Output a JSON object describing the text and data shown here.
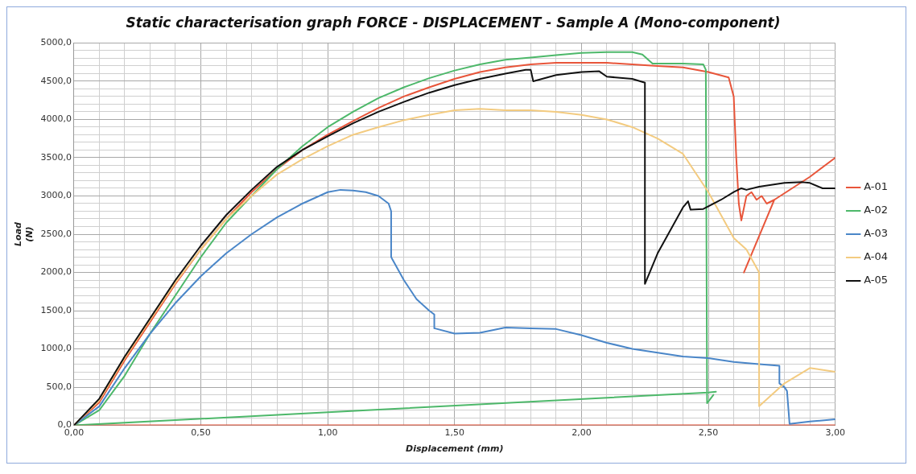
{
  "chart_data": {
    "type": "line",
    "title": "Static characterisation graph FORCE - DISPLACEMENT - Sample A (Mono-component)",
    "xlabel": "Displacement (mm)",
    "ylabel": "Load\n(N)",
    "xlim": [
      0,
      3
    ],
    "ylim": [
      0,
      5000
    ],
    "xticks": [
      {
        "value": 0,
        "label": "0,00"
      },
      {
        "value": 0.1,
        "label": null
      },
      {
        "value": 0.2,
        "label": null
      },
      {
        "value": 0.3,
        "label": null
      },
      {
        "value": 0.4,
        "label": null
      },
      {
        "value": 0.5,
        "label": "0,50"
      },
      {
        "value": 0.6,
        "label": null
      },
      {
        "value": 0.7,
        "label": null
      },
      {
        "value": 0.8,
        "label": null
      },
      {
        "value": 0.9,
        "label": null
      },
      {
        "value": 1,
        "label": "1,00"
      },
      {
        "value": 1.1,
        "label": null
      },
      {
        "value": 1.2,
        "label": null
      },
      {
        "value": 1.3,
        "label": null
      },
      {
        "value": 1.4,
        "label": null
      },
      {
        "value": 1.5,
        "label": "1,50"
      },
      {
        "value": 1.6,
        "label": null
      },
      {
        "value": 1.7,
        "label": null
      },
      {
        "value": 1.8,
        "label": null
      },
      {
        "value": 1.9,
        "label": null
      },
      {
        "value": 2,
        "label": "2,00"
      },
      {
        "value": 2.1,
        "label": null
      },
      {
        "value": 2.2,
        "label": null
      },
      {
        "value": 2.3,
        "label": null
      },
      {
        "value": 2.4,
        "label": null
      },
      {
        "value": 2.5,
        "label": "2,50"
      },
      {
        "value": 2.6,
        "label": null
      },
      {
        "value": 2.7,
        "label": null
      },
      {
        "value": 2.8,
        "label": null
      },
      {
        "value": 2.9,
        "label": null
      },
      {
        "value": 3,
        "label": "3,00"
      }
    ],
    "yticks": [
      {
        "value": 0,
        "label": "0,0"
      },
      {
        "value": 100,
        "label": null
      },
      {
        "value": 200,
        "label": null
      },
      {
        "value": 300,
        "label": null
      },
      {
        "value": 400,
        "label": null
      },
      {
        "value": 500,
        "label": "500,0"
      },
      {
        "value": 600,
        "label": null
      },
      {
        "value": 700,
        "label": null
      },
      {
        "value": 800,
        "label": null
      },
      {
        "value": 900,
        "label": null
      },
      {
        "value": 1000,
        "label": "1000,0"
      },
      {
        "value": 1100,
        "label": null
      },
      {
        "value": 1200,
        "label": null
      },
      {
        "value": 1300,
        "label": null
      },
      {
        "value": 1400,
        "label": null
      },
      {
        "value": 1500,
        "label": "1500,0"
      },
      {
        "value": 1600,
        "label": null
      },
      {
        "value": 1700,
        "label": null
      },
      {
        "value": 1800,
        "label": null
      },
      {
        "value": 1900,
        "label": null
      },
      {
        "value": 2000,
        "label": "2000,0"
      },
      {
        "value": 2100,
        "label": null
      },
      {
        "value": 2200,
        "label": null
      },
      {
        "value": 2300,
        "label": null
      },
      {
        "value": 2400,
        "label": null
      },
      {
        "value": 2500,
        "label": "2500,0"
      },
      {
        "value": 2600,
        "label": null
      },
      {
        "value": 2700,
        "label": null
      },
      {
        "value": 2800,
        "label": null
      },
      {
        "value": 2900,
        "label": null
      },
      {
        "value": 3000,
        "label": "3000,0"
      },
      {
        "value": 3100,
        "label": null
      },
      {
        "value": 3200,
        "label": null
      },
      {
        "value": 3300,
        "label": null
      },
      {
        "value": 3400,
        "label": null
      },
      {
        "value": 3500,
        "label": "3500,0"
      },
      {
        "value": 3600,
        "label": null
      },
      {
        "value": 3700,
        "label": null
      },
      {
        "value": 3800,
        "label": null
      },
      {
        "value": 3900,
        "label": null
      },
      {
        "value": 4000,
        "label": "4000,0"
      },
      {
        "value": 4100,
        "label": null
      },
      {
        "value": 4200,
        "label": null
      },
      {
        "value": 4300,
        "label": null
      },
      {
        "value": 4400,
        "label": null
      },
      {
        "value": 4500,
        "label": "4500,0"
      },
      {
        "value": 4600,
        "label": null
      },
      {
        "value": 4700,
        "label": null
      },
      {
        "value": 4800,
        "label": null
      },
      {
        "value": 4900,
        "label": null
      },
      {
        "value": 5000,
        "label": "5000,0"
      }
    ],
    "grid": true,
    "legend": "right",
    "marker": "none",
    "line_style": "solid",
    "series": [
      {
        "name": "A-01",
        "color": "#e8553a",
        "x": [
          3.0,
          0,
          0.1,
          0.2,
          0.3,
          0.4,
          0.5,
          0.6,
          0.7,
          0.8,
          0.9,
          1.0,
          1.1,
          1.2,
          1.3,
          1.4,
          1.5,
          1.6,
          1.7,
          1.8,
          1.9,
          2.0,
          2.1,
          2.2,
          2.3,
          2.4,
          2.5,
          2.58,
          2.6,
          2.61,
          2.62,
          2.63,
          2.65,
          2.67,
          2.69,
          2.71,
          2.73,
          2.76,
          2.64,
          2.76,
          2.9,
          3.0
        ],
        "values": [
          0,
          0,
          300,
          850,
          1350,
          1850,
          2300,
          2700,
          3050,
          3350,
          3600,
          3800,
          3980,
          4150,
          4300,
          4420,
          4530,
          4620,
          4680,
          4720,
          4740,
          4740,
          4740,
          4720,
          4700,
          4680,
          4620,
          4550,
          4300,
          3500,
          2900,
          2680,
          3000,
          3050,
          2950,
          3000,
          2900,
          2950,
          2000,
          2950,
          3250,
          3500
        ]
      },
      {
        "name": "A-02",
        "color": "#4db86a",
        "x": [
          2.53,
          2.5,
          0,
          0.1,
          0.2,
          0.3,
          0.4,
          0.5,
          0.6,
          0.7,
          0.8,
          0.9,
          1.0,
          1.1,
          1.2,
          1.3,
          1.4,
          1.5,
          1.6,
          1.7,
          1.8,
          1.9,
          2.0,
          2.1,
          2.2,
          2.24,
          2.28,
          2.4,
          2.48,
          2.49,
          2.495,
          2.52
        ],
        "values": [
          440,
          430,
          0,
          200,
          650,
          1200,
          1700,
          2200,
          2650,
          3000,
          3350,
          3650,
          3900,
          4100,
          4280,
          4420,
          4540,
          4640,
          4720,
          4780,
          4810,
          4840,
          4870,
          4880,
          4880,
          4850,
          4730,
          4730,
          4720,
          4650,
          290,
          400
        ]
      },
      {
        "name": "A-03",
        "color": "#4a86c8",
        "x": [
          0,
          0.1,
          0.2,
          0.3,
          0.4,
          0.5,
          0.6,
          0.7,
          0.8,
          0.9,
          1.0,
          1.05,
          1.1,
          1.15,
          1.2,
          1.24,
          1.25,
          1.25,
          1.3,
          1.35,
          1.4,
          1.42,
          1.42,
          1.5,
          1.6,
          1.7,
          1.8,
          1.9,
          2.0,
          2.1,
          2.2,
          2.3,
          2.4,
          2.5,
          2.6,
          2.7,
          2.78,
          2.78,
          2.8,
          2.81,
          2.82,
          2.9,
          3.0
        ],
        "values": [
          0,
          250,
          750,
          1200,
          1600,
          1950,
          2250,
          2500,
          2720,
          2900,
          3050,
          3080,
          3070,
          3050,
          3000,
          2900,
          2800,
          2200,
          1900,
          1650,
          1500,
          1450,
          1270,
          1200,
          1210,
          1280,
          1270,
          1260,
          1180,
          1080,
          1000,
          950,
          900,
          880,
          830,
          800,
          780,
          550,
          500,
          450,
          20,
          50,
          80
        ]
      },
      {
        "name": "A-04",
        "color": "#f3cb80",
        "x": [
          0,
          0.1,
          0.2,
          0.3,
          0.4,
          0.5,
          0.6,
          0.7,
          0.8,
          0.9,
          1.0,
          1.1,
          1.2,
          1.3,
          1.4,
          1.5,
          1.6,
          1.7,
          1.8,
          1.9,
          2.0,
          2.1,
          2.2,
          2.3,
          2.4,
          2.5,
          2.6,
          2.65,
          2.7,
          2.7,
          2.8,
          2.9,
          3.0
        ],
        "values": [
          0,
          330,
          880,
          1380,
          1870,
          2300,
          2700,
          3000,
          3280,
          3480,
          3650,
          3800,
          3900,
          3990,
          4060,
          4120,
          4140,
          4120,
          4120,
          4100,
          4060,
          4000,
          3900,
          3750,
          3550,
          3050,
          2450,
          2300,
          2000,
          250,
          550,
          750,
          700
        ]
      },
      {
        "name": "A-05",
        "color": "#111111",
        "x": [
          0,
          0.1,
          0.2,
          0.3,
          0.4,
          0.5,
          0.6,
          0.7,
          0.8,
          0.9,
          1.0,
          1.1,
          1.2,
          1.3,
          1.4,
          1.5,
          1.6,
          1.7,
          1.78,
          1.8,
          1.81,
          1.9,
          2.0,
          2.07,
          2.1,
          2.2,
          2.25,
          2.25,
          2.3,
          2.35,
          2.4,
          2.42,
          2.43,
          2.48,
          2.55,
          2.6,
          2.63,
          2.65,
          2.7,
          2.8,
          2.87,
          2.9,
          2.95,
          3.0
        ],
        "values": [
          0,
          350,
          900,
          1400,
          1900,
          2350,
          2750,
          3080,
          3380,
          3600,
          3780,
          3950,
          4100,
          4230,
          4350,
          4450,
          4530,
          4600,
          4650,
          4650,
          4500,
          4580,
          4620,
          4630,
          4560,
          4530,
          4480,
          1850,
          2250,
          2550,
          2850,
          2930,
          2820,
          2830,
          2950,
          3050,
          3100,
          3080,
          3120,
          3170,
          3180,
          3170,
          3100,
          3100
        ]
      }
    ]
  }
}
